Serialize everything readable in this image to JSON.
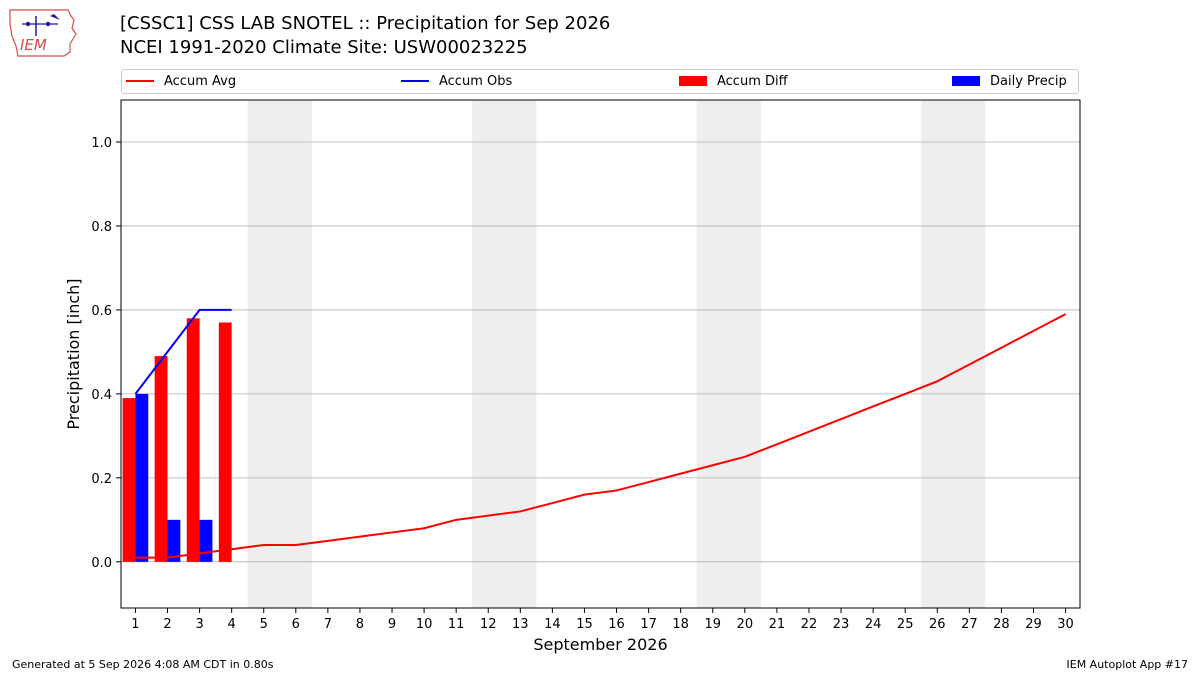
{
  "header": {
    "title_line1": "[CSSC1] CSS LAB SNOTEL :: Precipitation for Sep 2026",
    "title_line2": "NCEI 1991-2020 Climate Site: USW00023225"
  },
  "logo": {
    "text": "IEM"
  },
  "colors": {
    "accum_avg": "#ff0000",
    "accum_obs": "#0000ff",
    "accum_diff": "#ff0000",
    "daily_precip": "#0000ff",
    "weekend_shade": "#eeeeee",
    "grid": "#b0b0b0"
  },
  "chart_data": {
    "type": "bar",
    "xlabel": "September 2026",
    "ylabel": "Precipitation [inch]",
    "ylim": [
      -0.11,
      1.1
    ],
    "yticks": [
      0.0,
      0.2,
      0.4,
      0.6,
      0.8,
      1.0
    ],
    "xticks": [
      1,
      2,
      3,
      4,
      5,
      6,
      7,
      8,
      9,
      10,
      11,
      12,
      13,
      14,
      15,
      16,
      17,
      18,
      19,
      20,
      21,
      22,
      23,
      24,
      25,
      26,
      27,
      28,
      29,
      30
    ],
    "grid": "horizontal",
    "legend_position": "top",
    "weekend_days": [
      [
        5,
        6
      ],
      [
        12,
        13
      ],
      [
        19,
        20
      ],
      [
        26,
        27
      ]
    ],
    "series": [
      {
        "name": "Accum Avg",
        "kind": "line",
        "x": [
          1,
          2,
          3,
          4,
          5,
          6,
          7,
          8,
          9,
          10,
          11,
          12,
          13,
          14,
          15,
          16,
          17,
          18,
          19,
          20,
          21,
          22,
          23,
          24,
          25,
          26,
          27,
          28,
          29,
          30
        ],
        "values": [
          0.01,
          0.01,
          0.02,
          0.03,
          0.04,
          0.04,
          0.05,
          0.06,
          0.07,
          0.08,
          0.1,
          0.11,
          0.12,
          0.14,
          0.16,
          0.17,
          0.19,
          0.21,
          0.23,
          0.25,
          0.28,
          0.31,
          0.34,
          0.37,
          0.4,
          0.43,
          0.47,
          0.51,
          0.55,
          0.59
        ]
      },
      {
        "name": "Accum Obs",
        "kind": "line",
        "x": [
          1,
          2,
          3,
          4
        ],
        "values": [
          0.4,
          0.5,
          0.6,
          0.6
        ]
      },
      {
        "name": "Accum Diff",
        "kind": "bar",
        "x": [
          1,
          2,
          3,
          4
        ],
        "values": [
          0.39,
          0.49,
          0.58,
          0.57
        ]
      },
      {
        "name": "Daily Precip",
        "kind": "bar",
        "x": [
          1,
          2,
          3
        ],
        "values": [
          0.4,
          0.1,
          0.1
        ]
      }
    ]
  },
  "footer": {
    "generated": "Generated at 5 Sep 2026 4:08 AM CDT in 0.80s",
    "app": "IEM Autoplot App #17"
  }
}
